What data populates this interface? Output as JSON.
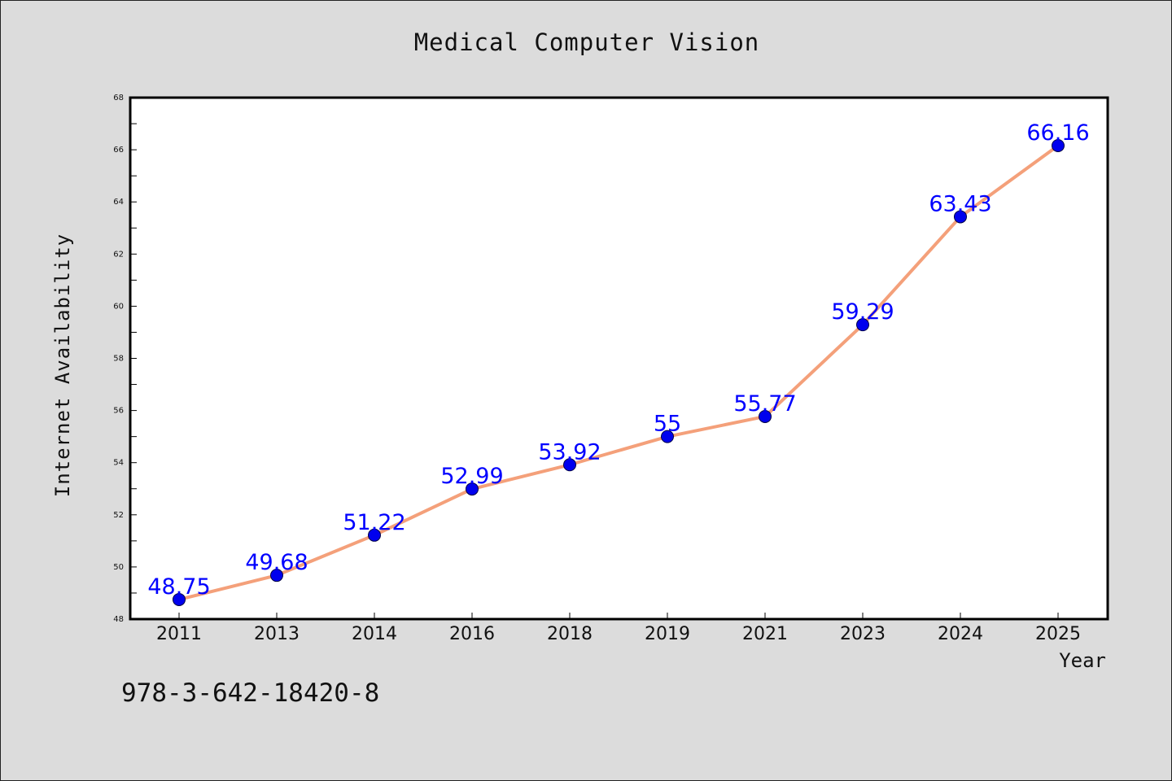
{
  "chart_data": {
    "type": "line",
    "title": "Medical Computer Vision",
    "xlabel": "Year",
    "ylabel": "Internet Availability",
    "categories": [
      "2011",
      "2013",
      "2014",
      "2016",
      "2018",
      "2019",
      "2021",
      "2023",
      "2024",
      "2025"
    ],
    "series": [
      {
        "values": [
          48.75,
          49.68,
          51.22,
          52.99,
          53.92,
          55,
          55.77,
          59.29,
          63.43,
          66.16
        ],
        "labels": [
          "48.75",
          "49.68",
          "51.22",
          "52.99",
          "53.92",
          "55",
          "55.77",
          "59.29",
          "63.43",
          "66.16"
        ],
        "line_color": "#f4a07a",
        "marker_color": "#0000ee"
      }
    ],
    "ylim": [
      48,
      68
    ],
    "yticks": [
      "48",
      "50",
      "52",
      "54",
      "56",
      "58",
      "60",
      "62",
      "64",
      "66",
      "68"
    ],
    "grid": false,
    "legend": "none",
    "label_color": "#0000ff"
  },
  "footnote": "978-3-642-18420-8"
}
